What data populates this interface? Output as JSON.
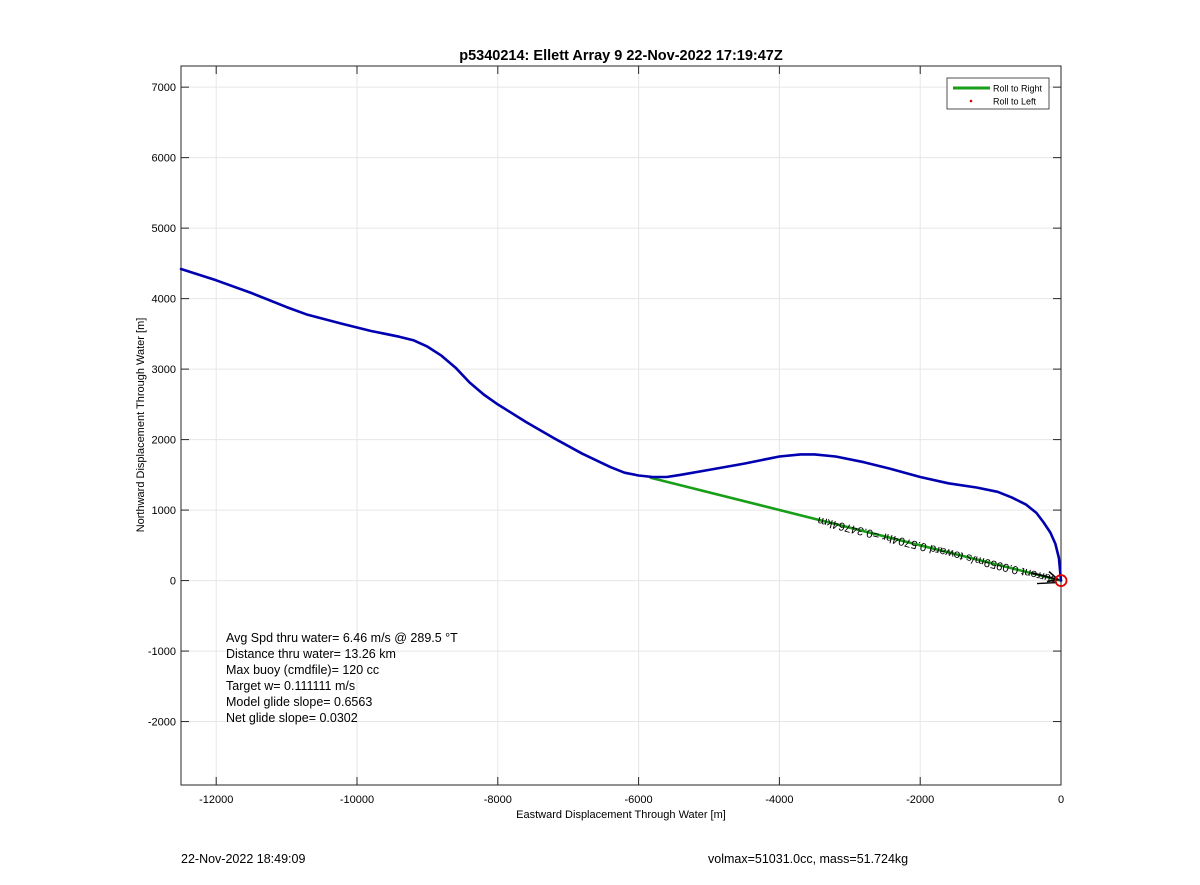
{
  "chart_data": {
    "type": "line",
    "title": "p5340214: Ellett Array 9 22-Nov-2022 17:19:47Z",
    "xlabel": "Eastward Displacement Through Water [m]",
    "ylabel": "Northward Displacement Through Water [m]",
    "xlim": [
      -12500,
      0
    ],
    "ylim": [
      -2900,
      7300
    ],
    "xticks": [
      -12000,
      -10000,
      -8000,
      -6000,
      -4000,
      -2000,
      0
    ],
    "yticks": [
      -2000,
      -1000,
      0,
      1000,
      2000,
      3000,
      4000,
      5000,
      6000,
      7000
    ],
    "grid": true,
    "legend_position": "top-right",
    "legend": [
      {
        "label": "Roll to Right",
        "color": "#1a9e1a",
        "marker": "line"
      },
      {
        "label": "Roll to Left",
        "color": "#e00000",
        "marker": "dot"
      }
    ],
    "series": [
      {
        "color": "#0000b0",
        "x": [
          -12500,
          -12000,
          -11500,
          -11000,
          -10700,
          -10200,
          -9800,
          -9400,
          -9200,
          -9000,
          -8800,
          -8600,
          -8400,
          -8200,
          -8000,
          -7600,
          -7200,
          -6800,
          -6400,
          -6200,
          -6000,
          -5800,
          -5600,
          -5400,
          -5000,
          -4500,
          -4000,
          -3700,
          -3500,
          -3200,
          -2800,
          -2400,
          -2000,
          -1600,
          -1200,
          -900,
          -700,
          -500,
          -350,
          -250,
          -150,
          -80,
          -30,
          0
        ],
        "y": [
          4420,
          4260,
          4080,
          3880,
          3770,
          3640,
          3540,
          3460,
          3410,
          3320,
          3190,
          3020,
          2810,
          2640,
          2500,
          2250,
          2020,
          1800,
          1610,
          1530,
          1490,
          1470,
          1470,
          1500,
          1570,
          1660,
          1760,
          1790,
          1790,
          1760,
          1680,
          1580,
          1470,
          1380,
          1320,
          1260,
          1180,
          1080,
          960,
          830,
          680,
          520,
          320,
          0
        ]
      },
      {
        "name": "Roll to Right",
        "color": "#1a9e1a",
        "x": [
          -5830,
          0
        ],
        "y": [
          1460,
          0
        ]
      }
    ],
    "marker_end": {
      "x": 0,
      "y": 0,
      "color": "#e00000"
    },
    "arrow_annotation": "current 0.0959m/s toward 0.5704hr =0.34764km",
    "stats": [
      "Avg Spd thru water=  6.46 m/s @ 289.5 °T",
      "Distance thru water= 13.26 km",
      "Max buoy (cmdfile)= 120 cc",
      "Target w= 0.111111 m/s",
      "Model glide slope= 0.6563",
      "Net glide slope= 0.0302"
    ]
  },
  "footer": {
    "left": "22-Nov-2022 18:49:09",
    "right": "volmax=51031.0cc, mass=51.724kg"
  }
}
